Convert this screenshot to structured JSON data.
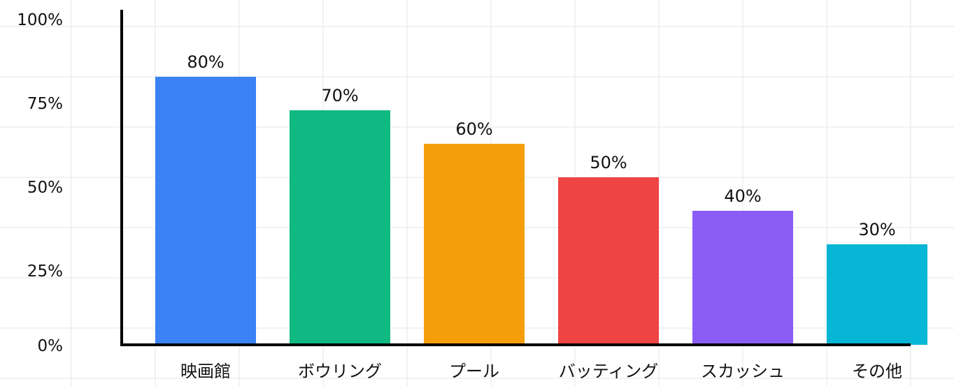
{
  "chart_data": {
    "type": "bar",
    "categories": [
      "映画館",
      "ボウリング",
      "プール",
      "バッティング",
      "スカッシュ",
      "その他"
    ],
    "values": [
      80,
      70,
      60,
      50,
      40,
      30
    ],
    "data_labels": [
      "80%",
      "70%",
      "60%",
      "50%",
      "40%",
      "30%"
    ],
    "y_ticks": [
      {
        "value": 0,
        "label": "0%"
      },
      {
        "value": 25,
        "label": "25%"
      },
      {
        "value": 50,
        "label": "50%"
      },
      {
        "value": 75,
        "label": "75%"
      },
      {
        "value": 100,
        "label": "100%"
      }
    ],
    "ylim": [
      0,
      100
    ],
    "grid": true,
    "legend": "none",
    "colors": [
      "#3b82f6",
      "#10b981",
      "#f59e0b",
      "#ef4444",
      "#8b5cf6",
      "#06b6d4"
    ]
  }
}
